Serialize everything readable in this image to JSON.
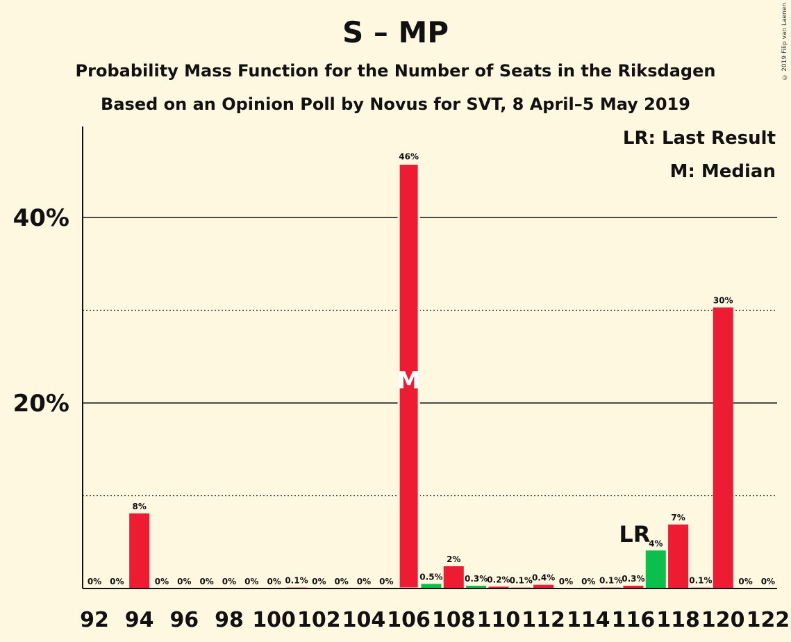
{
  "title": "S – MP",
  "subtitle1": "Probability Mass Function for the Number of Seats in the Riksdagen",
  "subtitle2": "Based on an Opinion Poll by Novus for SVT, 8 April–5 May 2019",
  "copyright": "© 2019 Filip van Laenen",
  "legend": {
    "last_result": "LR: Last Result",
    "median": "M: Median"
  },
  "colors": {
    "main": "#ee1c33",
    "last_result_bar": "#0bbf4c",
    "background": "#fff8e1"
  },
  "chart_data": {
    "type": "bar",
    "ylim": [
      0,
      50
    ],
    "yticks": [
      {
        "value": 20,
        "label": "20%"
      },
      {
        "value": 40,
        "label": "40%"
      }
    ],
    "dotted_gridlines": [
      10,
      30
    ],
    "xticks": [
      "92",
      "94",
      "96",
      "98",
      "100",
      "102",
      "104",
      "106",
      "108",
      "110",
      "112",
      "114",
      "116",
      "118",
      "120",
      "122"
    ],
    "median_seat": 106,
    "median_label": "M",
    "last_result_seat": 116,
    "last_result_label": "LR",
    "bars": [
      {
        "seat": 92,
        "value": 0,
        "label": "0%"
      },
      {
        "seat": 93,
        "value": 0,
        "label": "0%"
      },
      {
        "seat": 94,
        "value": 8.1,
        "label": "8%"
      },
      {
        "seat": 95,
        "value": 0,
        "label": "0%"
      },
      {
        "seat": 96,
        "value": 0,
        "label": "0%"
      },
      {
        "seat": 97,
        "value": 0,
        "label": "0%"
      },
      {
        "seat": 98,
        "value": 0,
        "label": "0%"
      },
      {
        "seat": 99,
        "value": 0,
        "label": "0%"
      },
      {
        "seat": 100,
        "value": 0,
        "label": "0%"
      },
      {
        "seat": 101,
        "value": 0.1,
        "label": "0.1%"
      },
      {
        "seat": 102,
        "value": 0,
        "label": "0%"
      },
      {
        "seat": 103,
        "value": 0,
        "label": "0%"
      },
      {
        "seat": 104,
        "value": 0,
        "label": "0%"
      },
      {
        "seat": 105,
        "value": 0,
        "label": "0%"
      },
      {
        "seat": 106,
        "value": 45.8,
        "label": "46%"
      },
      {
        "seat": 107,
        "value": 0.5,
        "label": "0.5%"
      },
      {
        "seat": 108,
        "value": 2.4,
        "label": "2%"
      },
      {
        "seat": 109,
        "value": 0.3,
        "label": "0.3%"
      },
      {
        "seat": 110,
        "value": 0.2,
        "label": "0.2%"
      },
      {
        "seat": 111,
        "value": 0.1,
        "label": "0.1%"
      },
      {
        "seat": 112,
        "value": 0.4,
        "label": "0.4%"
      },
      {
        "seat": 113,
        "value": 0,
        "label": "0%"
      },
      {
        "seat": 114,
        "value": 0,
        "label": "0%"
      },
      {
        "seat": 115,
        "value": 0.1,
        "label": "0.1%"
      },
      {
        "seat": 116,
        "value": 0.3,
        "label": "0.3%"
      },
      {
        "seat": 117,
        "value": 4.1,
        "label": "4%"
      },
      {
        "seat": 118,
        "value": 6.9,
        "label": "7%"
      },
      {
        "seat": 119,
        "value": 0.1,
        "label": "0.1%"
      },
      {
        "seat": 120,
        "value": 30.3,
        "label": "30%"
      },
      {
        "seat": 121,
        "value": 0,
        "label": "0%"
      },
      {
        "seat": 122,
        "value": 0,
        "label": "0%"
      }
    ]
  }
}
